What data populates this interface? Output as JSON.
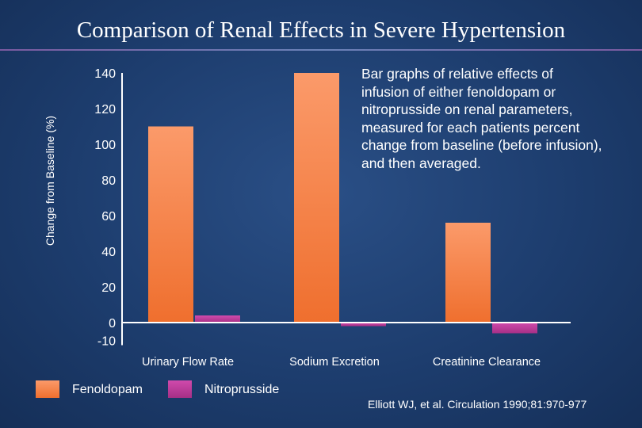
{
  "title": "Comparison of Renal Effects in Severe Hypertension",
  "description": "Bar graphs of relative effects of infusion of either fenoldopam or nitroprusside on renal parameters, measured for each patients percent change from baseline (before infusion), and then averaged.",
  "citation": "Elliott WJ, et al. Circulation 1990;81:970-977",
  "colors": {
    "fenoldopam": "#f57e3c",
    "nitroprusside": "#c23c9c",
    "background": "#1d3d6e"
  },
  "chart_data": {
    "type": "bar",
    "title": "Comparison of Renal Effects in Severe Hypertension",
    "xlabel": "",
    "ylabel": "Change from Baseline (%)",
    "ylim": [
      -10,
      140
    ],
    "y_ticks": [
      140,
      120,
      100,
      80,
      60,
      40,
      20,
      0,
      -10
    ],
    "categories": [
      "Urinary Flow Rate",
      "Sodium Excretion",
      "Creatinine Clearance"
    ],
    "series": [
      {
        "name": "Fenoldopam",
        "values": [
          110,
          140,
          56
        ]
      },
      {
        "name": "Nitroprusside",
        "values": [
          4,
          -2,
          -6
        ]
      }
    ],
    "legend": "bottom-left",
    "grid": false
  }
}
